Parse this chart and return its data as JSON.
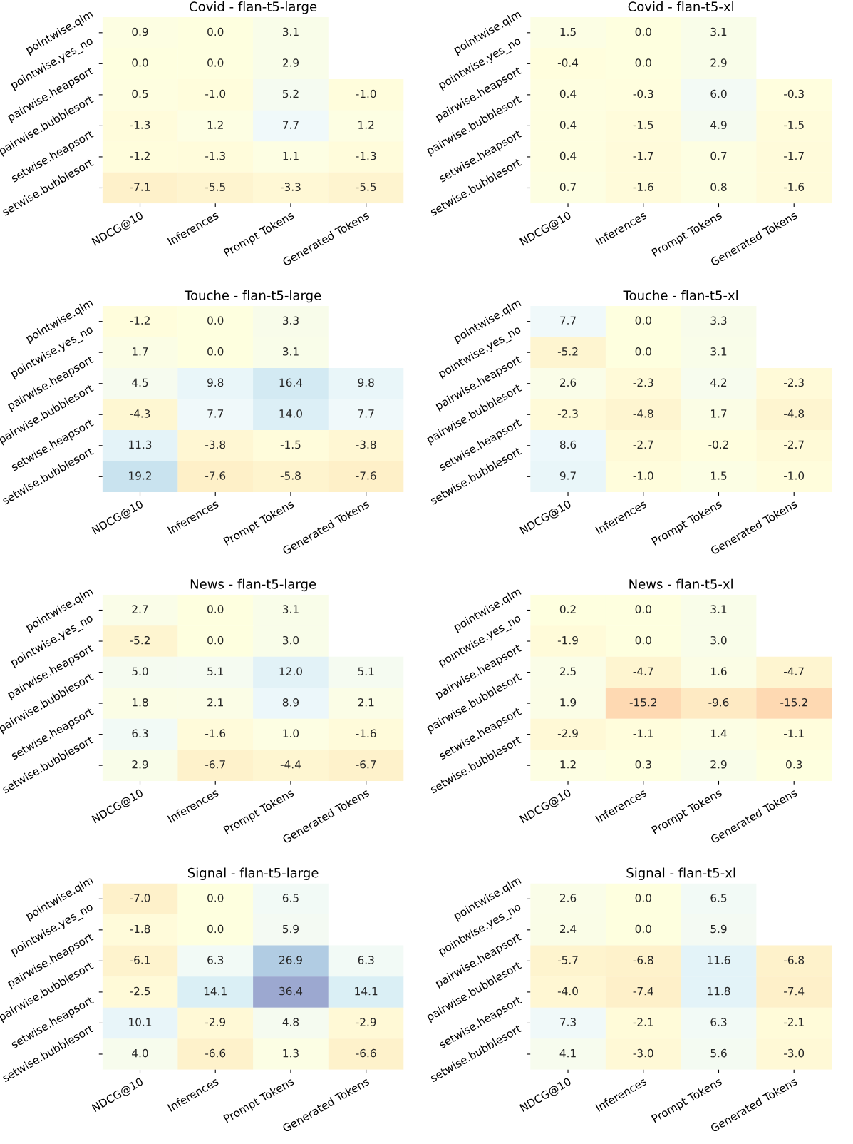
{
  "chart_data": [
    {
      "type": "heatmap",
      "title": "Covid - flan-t5-large",
      "data_labels": true,
      "categories": [
        "NDCG@10",
        "Inferences",
        "Prompt Tokens",
        "Generated Tokens"
      ],
      "y_categories": [
        "pointwise.qlm",
        "pointwise.yes_no",
        "pairwise.heapsort",
        "pairwise.bubblesort",
        "setwise.heapsort",
        "setwise.bubblesort"
      ],
      "cells": [
        [
          0.9,
          0.0,
          3.1,
          null
        ],
        [
          0.0,
          0.0,
          2.9,
          null
        ],
        [
          0.5,
          -1.0,
          5.2,
          -1.0
        ],
        [
          -1.3,
          1.2,
          7.7,
          1.2
        ],
        [
          -1.2,
          -1.3,
          1.1,
          -1.3
        ],
        [
          -7.1,
          -5.5,
          -3.3,
          -5.5
        ]
      ],
      "cell_labels": [
        [
          "0.9",
          "0.0",
          "3.1",
          null
        ],
        [
          "0.0",
          "0.0",
          "2.9",
          null
        ],
        [
          "0.5",
          "-1.0",
          "5.2",
          "-1.0"
        ],
        [
          "-1.3",
          "1.2",
          "7.7",
          "1.2"
        ],
        [
          "-1.2",
          "-1.3",
          "1.1",
          "-1.3"
        ],
        [
          "-7.1",
          "-5.5",
          "-3.3",
          "-5.5"
        ]
      ]
    },
    {
      "type": "heatmap",
      "title": "Covid - flan-t5-xl",
      "data_labels": true,
      "categories": [
        "NDCG@10",
        "Inferences",
        "Prompt Tokens",
        "Generated Tokens"
      ],
      "y_categories": [
        "pointwise.qlm",
        "pointwise.yes_no",
        "pairwise.heapsort",
        "pairwise.bubblesort",
        "setwise.heapsort",
        "setwise.bubblesort"
      ],
      "cells": [
        [
          1.5,
          0.0,
          3.1,
          null
        ],
        [
          -0.4,
          0.0,
          2.9,
          null
        ],
        [
          0.4,
          -0.3,
          6.0,
          -0.3
        ],
        [
          0.4,
          -1.5,
          4.9,
          -1.5
        ],
        [
          0.4,
          -1.7,
          0.7,
          -1.7
        ],
        [
          0.7,
          -1.6,
          0.8,
          -1.6
        ]
      ],
      "cell_labels": [
        [
          "1.5",
          "0.0",
          "3.1",
          null
        ],
        [
          "-0.4",
          "0.0",
          "2.9",
          null
        ],
        [
          "0.4",
          "-0.3",
          "6.0",
          "-0.3"
        ],
        [
          "0.4",
          "-1.5",
          "4.9",
          "-1.5"
        ],
        [
          "0.4",
          "-1.7",
          "0.7",
          "-1.7"
        ],
        [
          "0.7",
          "-1.6",
          "0.8",
          "-1.6"
        ]
      ]
    },
    {
      "type": "heatmap",
      "title": "Touche - flan-t5-large",
      "data_labels": true,
      "categories": [
        "NDCG@10",
        "Inferences",
        "Prompt Tokens",
        "Generated Tokens"
      ],
      "y_categories": [
        "pointwise.qlm",
        "pointwise.yes_no",
        "pairwise.heapsort",
        "pairwise.bubblesort",
        "setwise.heapsort",
        "setwise.bubblesort"
      ],
      "cells": [
        [
          -1.2,
          0.0,
          3.3,
          null
        ],
        [
          1.7,
          0.0,
          3.1,
          null
        ],
        [
          4.5,
          9.8,
          16.4,
          9.8
        ],
        [
          -4.3,
          7.7,
          14.0,
          7.7
        ],
        [
          11.3,
          -3.8,
          -1.5,
          -3.8
        ],
        [
          19.2,
          -7.6,
          -5.8,
          -7.6
        ]
      ],
      "cell_labels": [
        [
          "-1.2",
          "0.0",
          "3.3",
          null
        ],
        [
          "1.7",
          "0.0",
          "3.1",
          null
        ],
        [
          "4.5",
          "9.8",
          "16.4",
          "9.8"
        ],
        [
          "-4.3",
          "7.7",
          "14.0",
          "7.7"
        ],
        [
          "11.3",
          "-3.8",
          "-1.5",
          "-3.8"
        ],
        [
          "19.2",
          "-7.6",
          "-5.8",
          "-7.6"
        ]
      ]
    },
    {
      "type": "heatmap",
      "title": "Touche - flan-t5-xl",
      "data_labels": true,
      "categories": [
        "NDCG@10",
        "Inferences",
        "Prompt Tokens",
        "Generated Tokens"
      ],
      "y_categories": [
        "pointwise.qlm",
        "pointwise.yes_no",
        "pairwise.heapsort",
        "pairwise.bubblesort",
        "setwise.heapsort",
        "setwise.bubblesort"
      ],
      "cells": [
        [
          7.7,
          0.0,
          3.3,
          null
        ],
        [
          -5.2,
          0.0,
          3.1,
          null
        ],
        [
          2.6,
          -2.3,
          4.2,
          -2.3
        ],
        [
          -2.3,
          -4.8,
          1.7,
          -4.8
        ],
        [
          8.6,
          -2.7,
          -0.2,
          -2.7
        ],
        [
          9.7,
          -1.0,
          1.5,
          -1.0
        ]
      ],
      "cell_labels": [
        [
          "7.7",
          "0.0",
          "3.3",
          null
        ],
        [
          "-5.2",
          "0.0",
          "3.1",
          null
        ],
        [
          "2.6",
          "-2.3",
          "4.2",
          "-2.3"
        ],
        [
          "-2.3",
          "-4.8",
          "1.7",
          "-4.8"
        ],
        [
          "8.6",
          "-2.7",
          "-0.2",
          "-2.7"
        ],
        [
          "9.7",
          "-1.0",
          "1.5",
          "-1.0"
        ]
      ]
    },
    {
      "type": "heatmap",
      "title": "News - flan-t5-large",
      "data_labels": true,
      "categories": [
        "NDCG@10",
        "Inferences",
        "Prompt Tokens",
        "Generated Tokens"
      ],
      "y_categories": [
        "pointwise.qlm",
        "pointwise.yes_no",
        "pairwise.heapsort",
        "pairwise.bubblesort",
        "setwise.heapsort",
        "setwise.bubblesort"
      ],
      "cells": [
        [
          2.7,
          0.0,
          3.1,
          null
        ],
        [
          -5.2,
          0.0,
          3.0,
          null
        ],
        [
          5.0,
          5.1,
          12.0,
          5.1
        ],
        [
          1.8,
          2.1,
          8.9,
          2.1
        ],
        [
          6.3,
          -1.6,
          1.0,
          -1.6
        ],
        [
          2.9,
          -6.7,
          -4.4,
          -6.7
        ]
      ],
      "cell_labels": [
        [
          "2.7",
          "0.0",
          "3.1",
          null
        ],
        [
          "-5.2",
          "0.0",
          "3.0",
          null
        ],
        [
          "5.0",
          "5.1",
          "12.0",
          "5.1"
        ],
        [
          "1.8",
          "2.1",
          "8.9",
          "2.1"
        ],
        [
          "6.3",
          "-1.6",
          "1.0",
          "-1.6"
        ],
        [
          "2.9",
          "-6.7",
          "-4.4",
          "-6.7"
        ]
      ]
    },
    {
      "type": "heatmap",
      "title": "News - flan-t5-xl",
      "data_labels": true,
      "categories": [
        "NDCG@10",
        "Inferences",
        "Prompt Tokens",
        "Generated Tokens"
      ],
      "y_categories": [
        "pointwise.qlm",
        "pointwise.yes_no",
        "pairwise.heapsort",
        "pairwise.bubblesort",
        "setwise.heapsort",
        "setwise.bubblesort"
      ],
      "cells": [
        [
          0.2,
          0.0,
          3.1,
          null
        ],
        [
          -1.9,
          0.0,
          3.0,
          null
        ],
        [
          2.5,
          -4.7,
          1.6,
          -4.7
        ],
        [
          1.9,
          -15.2,
          -9.6,
          -15.2
        ],
        [
          -2.9,
          -1.1,
          1.4,
          -1.1
        ],
        [
          1.2,
          0.3,
          2.9,
          0.3
        ]
      ],
      "cell_labels": [
        [
          "0.2",
          "0.0",
          "3.1",
          null
        ],
        [
          "-1.9",
          "0.0",
          "3.0",
          null
        ],
        [
          "2.5",
          "-4.7",
          "1.6",
          "-4.7"
        ],
        [
          "1.9",
          "-15.2",
          "-9.6",
          "-15.2"
        ],
        [
          "-2.9",
          "-1.1",
          "1.4",
          "-1.1"
        ],
        [
          "1.2",
          "0.3",
          "2.9",
          "0.3"
        ]
      ]
    },
    {
      "type": "heatmap",
      "title": "Signal - flan-t5-large",
      "data_labels": true,
      "categories": [
        "NDCG@10",
        "Inferences",
        "Prompt Tokens",
        "Generated Tokens"
      ],
      "y_categories": [
        "pointwise.qlm",
        "pointwise.yes_no",
        "pairwise.heapsort",
        "pairwise.bubblesort",
        "setwise.heapsort",
        "setwise.bubblesort"
      ],
      "cells": [
        [
          -7.0,
          0.0,
          6.5,
          null
        ],
        [
          -1.8,
          0.0,
          5.9,
          null
        ],
        [
          -6.1,
          6.3,
          26.9,
          6.3
        ],
        [
          -2.5,
          14.1,
          36.4,
          14.1
        ],
        [
          10.1,
          -2.9,
          4.8,
          -2.9
        ],
        [
          4.0,
          -6.6,
          1.3,
          -6.6
        ]
      ],
      "cell_labels": [
        [
          "-7.0",
          "0.0",
          "6.5",
          null
        ],
        [
          "-1.8",
          "0.0",
          "5.9",
          null
        ],
        [
          "-6.1",
          "6.3",
          "26.9",
          "6.3"
        ],
        [
          "-2.5",
          "14.1",
          "36.4",
          "14.1"
        ],
        [
          "10.1",
          "-2.9",
          "4.8",
          "-2.9"
        ],
        [
          "4.0",
          "-6.6",
          "1.3",
          "-6.6"
        ]
      ]
    },
    {
      "type": "heatmap",
      "title": "Signal - flan-t5-xl",
      "data_labels": true,
      "categories": [
        "NDCG@10",
        "Inferences",
        "Prompt Tokens",
        "Generated Tokens"
      ],
      "y_categories": [
        "pointwise.qlm",
        "pointwise.yes_no",
        "pairwise.heapsort",
        "pairwise.bubblesort",
        "setwise.heapsort",
        "setwise.bubblesort"
      ],
      "cells": [
        [
          2.6,
          0.0,
          6.5,
          null
        ],
        [
          2.4,
          0.0,
          5.9,
          null
        ],
        [
          -5.7,
          -6.8,
          11.6,
          -6.8
        ],
        [
          -4.0,
          -7.4,
          11.8,
          -7.4
        ],
        [
          7.3,
          -2.1,
          6.3,
          -2.1
        ],
        [
          4.1,
          -3.0,
          5.6,
          -3.0
        ]
      ],
      "cell_labels": [
        [
          "2.6",
          "0.0",
          "6.5",
          null
        ],
        [
          "2.4",
          "0.0",
          "5.9",
          null
        ],
        [
          "-5.7",
          "-6.8",
          "11.6",
          "-6.8"
        ],
        [
          "-4.0",
          "-7.4",
          "11.8",
          "-7.4"
        ],
        [
          "7.3",
          "-2.1",
          "6.3",
          "-2.1"
        ],
        [
          "4.1",
          "-3.0",
          "5.6",
          "-3.0"
        ]
      ]
    }
  ]
}
